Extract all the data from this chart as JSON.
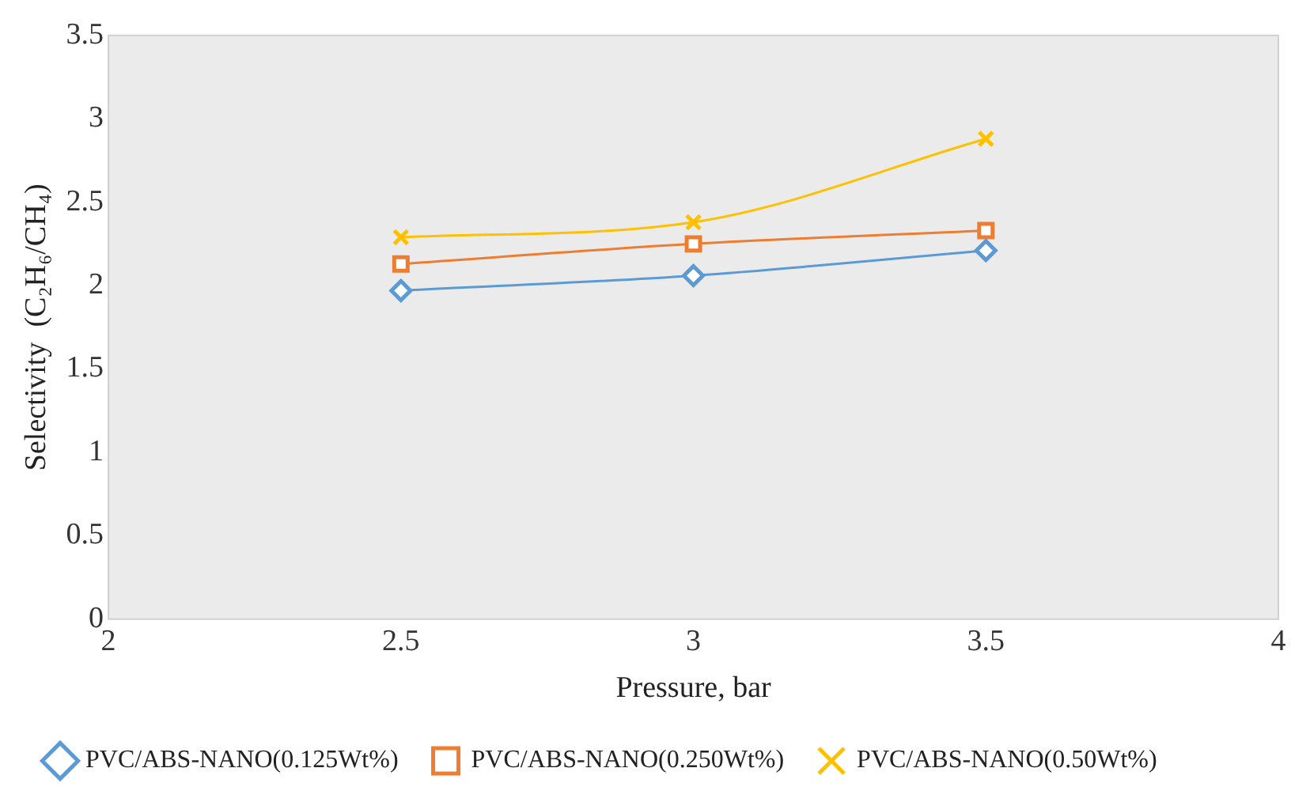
{
  "chart_data": {
    "type": "line",
    "xlabel": "Pressure, bar",
    "ylabel": "Selectivity  (C₂H₆/CH₄)",
    "x": [
      2.5,
      3,
      3.5
    ],
    "series": [
      {
        "name": "PVC/ABS-NANO(0.125Wt%)",
        "color": "#5b9bd5",
        "values": [
          1.97,
          2.06,
          2.21
        ],
        "marker": "diamond"
      },
      {
        "name": "PVC/ABS-NANO(0.250Wt%)",
        "color": "#ed7d31",
        "values": [
          2.13,
          2.25,
          2.33
        ],
        "marker": "square"
      },
      {
        "name": "PVC/ABS-NANO(0.50Wt%)",
        "color": "#ffc000",
        "values": [
          2.29,
          2.38,
          2.88
        ],
        "marker": "cross"
      }
    ],
    "xlim": [
      2,
      4
    ],
    "xticks": [
      2,
      2.5,
      3,
      3.5,
      4
    ],
    "ylim": [
      0,
      3.5
    ],
    "yticks": [
      0,
      0.5,
      1,
      1.5,
      2,
      2.5,
      3,
      3.5
    ],
    "grid": false,
    "legend": "bottom",
    "line_style": "solid"
  }
}
